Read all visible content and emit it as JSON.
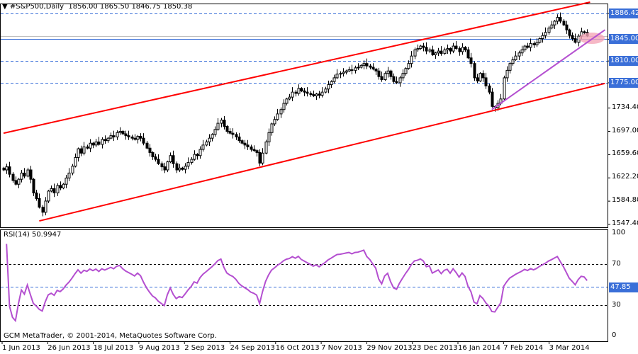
{
  "header": {
    "symbol": "#S&P500,Daily",
    "ohlc": "1856.00 1865.50 1846.75 1850.38"
  },
  "rsi_header": "RSI(14) 50.9947",
  "footer": "GCM MetaTrader, © 2001-2014, MetaQuotes Software Corp.",
  "colors": {
    "up_body": "#ffffff",
    "down_body": "#000000",
    "channel": "#ff0000",
    "trendline": "#b44fd0",
    "level_line": "#3a6fd8",
    "tag_bg": "#3a6fd8",
    "rsi": "#b44fd0",
    "highlight": "#f4a6b8"
  },
  "chart_data": [
    {
      "type": "candlestick",
      "title": "#S&P500,Daily",
      "ylim": [
        1547.4,
        1904
      ],
      "y_ticks": [
        "1886.42",
        "1845.00",
        "1810.00",
        "1775.00",
        "1734.40",
        "1697.00",
        "1659.60",
        "1622.20",
        "1584.80",
        "1547.40"
      ],
      "x_ticks": [
        "1 Jun 2013",
        "26 Jun 2013",
        "18 Jul 2013",
        "9 Aug 2013",
        "2 Sep 2013",
        "24 Sep 2013",
        "16 Oct 2013",
        "7 Nov 2013",
        "29 Nov 2013",
        "23 Dec 2013",
        "16 Jan 2014",
        "7 Feb 2014",
        "3 Mar 2014"
      ],
      "levels": [
        {
          "value": 1886.42,
          "style": "dashed",
          "label": "1886.42"
        },
        {
          "value": 1845.0,
          "style": "solid",
          "label": "1845.00"
        },
        {
          "value": 1810.0,
          "style": "dashed",
          "label": "1810.00"
        },
        {
          "value": 1775.0,
          "style": "dashed",
          "label": "1775.00"
        },
        {
          "value": 1850.38,
          "style": "bid"
        }
      ],
      "closes": [
        1635,
        1640,
        1628,
        1618,
        1612,
        1620,
        1630,
        1625,
        1635,
        1620,
        1598,
        1589,
        1575,
        1567,
        1585,
        1601,
        1605,
        1598,
        1610,
        1606,
        1612,
        1622,
        1630,
        1641,
        1655,
        1669,
        1662,
        1672,
        1670,
        1678,
        1675,
        1680,
        1676,
        1684,
        1682,
        1686,
        1690,
        1688,
        1695,
        1697,
        1693,
        1690,
        1688,
        1686,
        1684,
        1689,
        1686,
        1678,
        1670,
        1663,
        1656,
        1652,
        1645,
        1640,
        1635,
        1648,
        1658,
        1645,
        1635,
        1638,
        1636,
        1641,
        1647,
        1652,
        1660,
        1658,
        1668,
        1675,
        1680,
        1686,
        1692,
        1700,
        1710,
        1715,
        1705,
        1697,
        1694,
        1692,
        1688,
        1682,
        1678,
        1675,
        1672,
        1668,
        1666,
        1663,
        1646,
        1662,
        1680,
        1695,
        1709,
        1716,
        1725,
        1732,
        1742,
        1749,
        1752,
        1760,
        1758,
        1766,
        1762,
        1760,
        1758,
        1756,
        1754,
        1757,
        1755,
        1760,
        1765,
        1772,
        1777,
        1783,
        1789,
        1790,
        1792,
        1794,
        1796,
        1795,
        1799,
        1800,
        1803,
        1806,
        1802,
        1800,
        1797,
        1794,
        1785,
        1780,
        1790,
        1794,
        1785,
        1777,
        1775,
        1783,
        1790,
        1798,
        1806,
        1818,
        1828,
        1830,
        1834,
        1832,
        1826,
        1828,
        1820,
        1823,
        1826,
        1822,
        1828,
        1830,
        1826,
        1834,
        1830,
        1825,
        1832,
        1828,
        1815,
        1806,
        1783,
        1778,
        1790,
        1783,
        1770,
        1760,
        1737,
        1735,
        1742,
        1749,
        1783,
        1795,
        1806,
        1812,
        1818,
        1823,
        1828,
        1834,
        1832,
        1838,
        1836,
        1840,
        1846,
        1851,
        1856,
        1863,
        1868,
        1874,
        1880,
        1874,
        1868,
        1860,
        1851,
        1846,
        1840,
        1850,
        1857,
        1856,
        1850.38
      ],
      "channel_upper": [
        {
          "bar": 0,
          "price": 1694
        },
        {
          "bar": 197,
          "price": 1904.6
        }
      ],
      "channel_lower": [
        {
          "bar": 12,
          "price": 1553
        },
        {
          "bar": 202,
          "price": 1774
        }
      ],
      "support_trendline": [
        {
          "bar": 164,
          "price": 1732
        },
        {
          "bar": 202,
          "price": 1860
        }
      ]
    },
    {
      "type": "line",
      "title": "RSI(14) 50.9947",
      "period": 14,
      "ylim": [
        0,
        100
      ],
      "y_ticks": [
        "100",
        "70",
        "30",
        "0"
      ],
      "levels": [
        70,
        30
      ],
      "marker": {
        "value": 47.85,
        "label": "47.85"
      }
    }
  ]
}
